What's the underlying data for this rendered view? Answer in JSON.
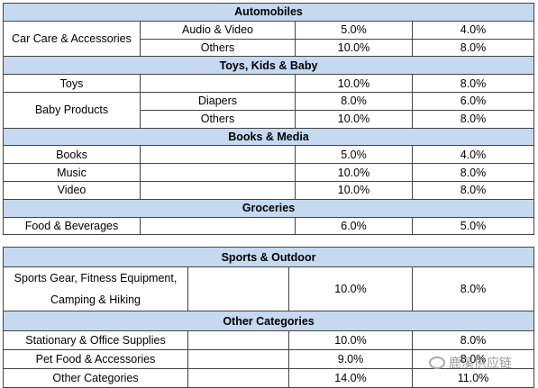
{
  "tables": [
    {
      "sections": [
        {
          "title": "Automobiles",
          "groups": [
            {
              "name": "Car Care & Accessories",
              "rows": [
                {
                  "sub": "Audio & Video",
                  "values": [
                    "5.0%",
                    "4.0%"
                  ]
                },
                {
                  "sub": "Others",
                  "values": [
                    "10.0%",
                    "8.0%"
                  ]
                }
              ]
            }
          ]
        },
        {
          "title": "Toys, Kids & Baby",
          "groups": [
            {
              "name": "Toys",
              "rows": [
                {
                  "values": [
                    "10.0%",
                    "8.0%"
                  ]
                }
              ]
            },
            {
              "name": "Baby Products",
              "rows": [
                {
                  "sub": "Diapers",
                  "values": [
                    "8.0%",
                    "6.0%"
                  ]
                },
                {
                  "sub": "Others",
                  "values": [
                    "10.0%",
                    "8.0%"
                  ]
                }
              ]
            }
          ]
        },
        {
          "title": "Books & Media",
          "groups": [
            {
              "name": "Books",
              "rows": [
                {
                  "values": [
                    "5.0%",
                    "4.0%"
                  ]
                }
              ]
            },
            {
              "name": "Music",
              "rows": [
                {
                  "values": [
                    "10.0%",
                    "8.0%"
                  ]
                }
              ]
            },
            {
              "name": "Video",
              "rows": [
                {
                  "values": [
                    "10.0%",
                    "8.0%"
                  ]
                }
              ]
            }
          ]
        },
        {
          "title": "Groceries",
          "groups": [
            {
              "name": "Food & Beverages",
              "rows": [
                {
                  "values": [
                    "6.0%",
                    "5.0%"
                  ]
                }
              ]
            }
          ]
        }
      ]
    },
    {
      "sections": [
        {
          "title": "Sports & Outdoor",
          "groups": [
            {
              "lines": [
                "Sports Gear, Fitness Equipment,",
                "Camping & Hiking"
              ],
              "rows": [
                {
                  "values": [
                    "10.0%",
                    "8.0%"
                  ]
                }
              ]
            }
          ]
        },
        {
          "title": "Other Categories",
          "groups": [
            {
              "name": "Stationary & Office Supplies",
              "rows": [
                {
                  "values": [
                    "10.0%",
                    "8.0%"
                  ]
                }
              ]
            },
            {
              "name": "Pet Food & Accessories",
              "rows": [
                {
                  "values": [
                    "9.0%",
                    "8.0%"
                  ]
                }
              ]
            },
            {
              "name": "Other Categories",
              "rows": [
                {
                  "values": [
                    "14.0%",
                    "11.0%"
                  ]
                }
              ]
            }
          ]
        }
      ]
    }
  ],
  "watermark": "鹿溪供应链"
}
